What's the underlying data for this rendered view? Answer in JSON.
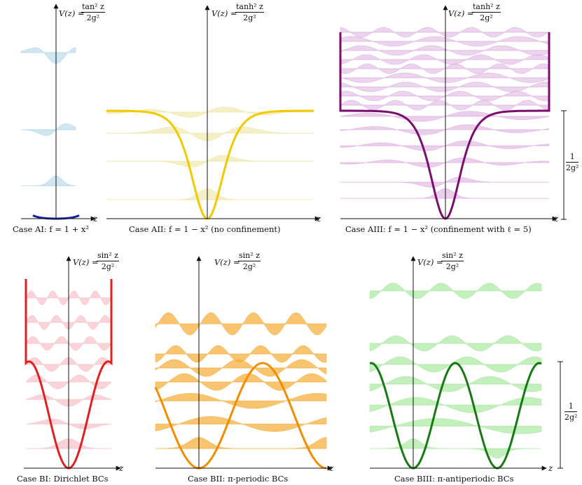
{
  "panels": [
    {
      "id": "AI",
      "caption": "Case AI: f = 1 + x²",
      "potential": "V(z) =",
      "num": "tan² z",
      "den": "2g²",
      "color": "#1622a8",
      "wave": "#a9d3e8"
    },
    {
      "id": "AII",
      "caption": "Case AII: f = 1 − x² (no confinement)",
      "potential": "V(z) =",
      "num": "tanh² z",
      "den": "2g²",
      "color": "#f2c800",
      "wave": "#efe4a0"
    },
    {
      "id": "AIII",
      "caption": "Case AIII: f = 1 − x² (confinement with ℓ = 5)",
      "potential": "V(z) =",
      "num": "tanh² z",
      "den": "2g²",
      "color": "#7a0c6e",
      "wave": "#dcaee0"
    },
    {
      "id": "BI",
      "caption": "Case BI: Dirichlet BCs",
      "potential": "V(z) =",
      "num": "sin² z",
      "den": "2g²",
      "color": "#e0201e",
      "wave": "#f6c0c8"
    },
    {
      "id": "BII",
      "caption": "Case BII: π-periodic BCs",
      "potential": "V(z) =",
      "num": "sin² z",
      "den": "2g²",
      "color": "#f28c00",
      "wave": "#f5b040"
    },
    {
      "id": "BIII",
      "caption": "Case BIII: π-antiperiodic BCs",
      "potential": "V(z) =",
      "num": "sin² z",
      "den": "2g²",
      "color": "#167a12",
      "wave": "#a8e8a0"
    }
  ],
  "axis_label": "z",
  "scale_bar": {
    "num": "1",
    "den": "2g²"
  }
}
